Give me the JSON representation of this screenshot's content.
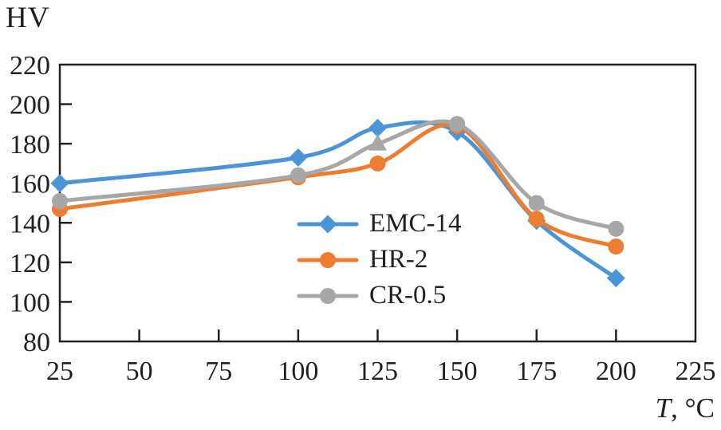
{
  "chart_data": {
    "type": "line",
    "title": "",
    "ylabel": "HV",
    "xlabel_text": "T, °C",
    "xlabel": {
      "variable": "T",
      "unit": ", °C"
    },
    "x": [
      25,
      100,
      125,
      150,
      175,
      200
    ],
    "series": [
      {
        "name": "EMC-14",
        "color": "#4b95d6",
        "marker": "diamond",
        "values": [
          160,
          173,
          188,
          186,
          141,
          112
        ]
      },
      {
        "name": "HR-2",
        "color": "#ed7d31",
        "marker": "circle",
        "values": [
          147,
          163,
          170,
          189,
          142,
          128
        ]
      },
      {
        "name": "CR-0.5",
        "color": "#a7a7a7",
        "marker": "circle",
        "marker_overrides": {
          "2": "triangle"
        },
        "values": [
          151,
          164,
          180,
          190,
          150,
          137
        ]
      }
    ],
    "xlim": [
      25,
      225
    ],
    "ylim": [
      80,
      220
    ],
    "xticks": [
      25,
      50,
      75,
      100,
      125,
      150,
      175,
      200,
      225
    ],
    "yticks": [
      80,
      100,
      120,
      140,
      160,
      180,
      200,
      220
    ],
    "grid": false,
    "legend_position": "inside-bottom-center",
    "frame_color": "#231f20",
    "line_style": "smooth"
  }
}
